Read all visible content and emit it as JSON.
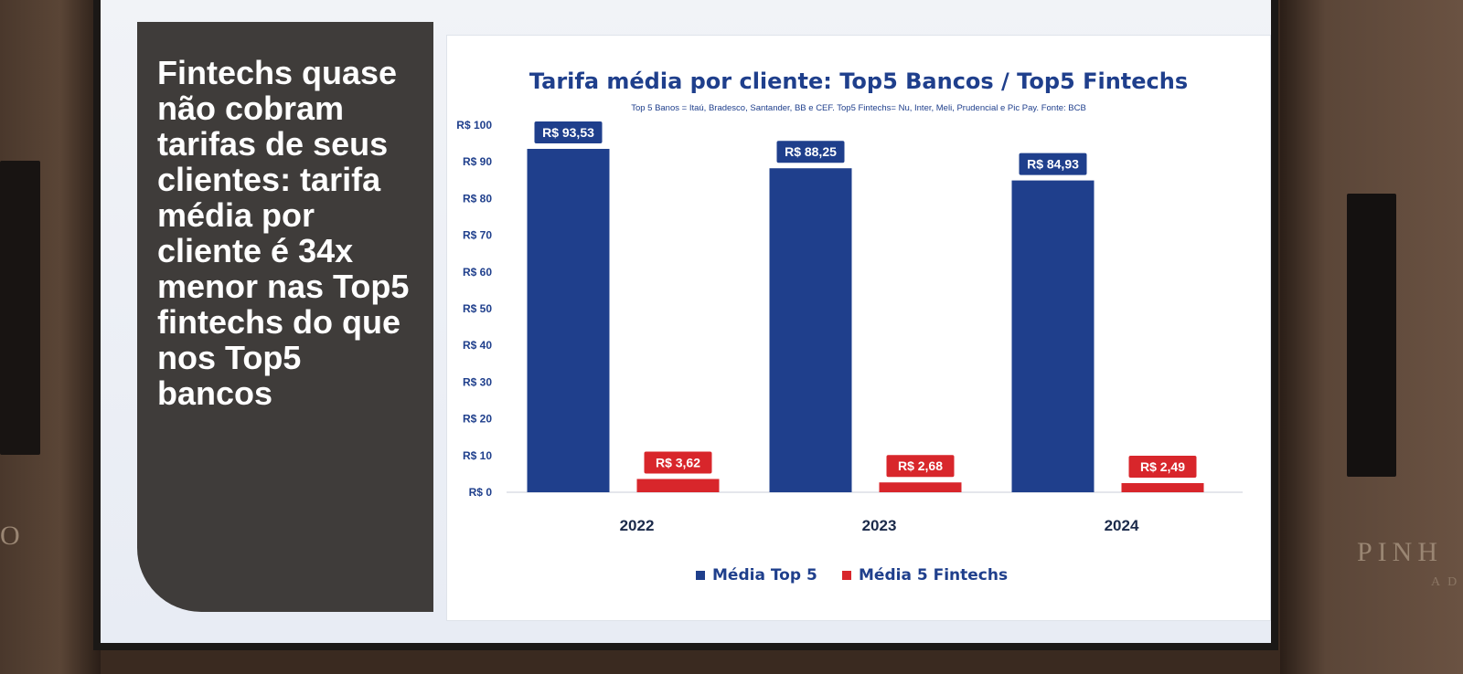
{
  "slide": {
    "headline": "Fintechs quase não cobram tarifas de seus clientes: tarifa média por cliente é 34x menor nas Top5 fintechs do que nos Top5 bancos"
  },
  "room": {
    "wall_text": "PINH",
    "wall_text_sub": "AD",
    "wall_text_left": "O"
  },
  "colors": {
    "navy": "#1f3f8c",
    "red": "#d8262b",
    "panel": "#3f3c3a"
  },
  "chart_data": {
    "type": "bar",
    "title": "Tarifa média por cliente: Top5 Bancos / Top5 Fintechs",
    "subtitle": "Top 5 Banos = Itaú, Bradesco, Santander, BB e CEF. Top5 Fintechs= Nu, Inter, Meli, Prudencial e Pic Pay. Fonte: BCB",
    "categories": [
      "2022",
      "2023",
      "2024"
    ],
    "series": [
      {
        "name": "Média Top 5",
        "values": [
          93.53,
          88.25,
          84.93
        ],
        "labels": [
          "R$ 93,53",
          "R$ 88,25",
          "R$ 84,93"
        ],
        "color": "#1f3f8c"
      },
      {
        "name": "Média 5 Fintechs",
        "values": [
          3.62,
          2.68,
          2.49
        ],
        "labels": [
          "R$ 3,62",
          "R$ 2,68",
          "R$ 2,49"
        ],
        "color": "#d8262b"
      }
    ],
    "ylim": [
      0,
      100
    ],
    "yticks": [
      0,
      10,
      20,
      30,
      40,
      50,
      60,
      70,
      80,
      90,
      100
    ],
    "ytick_labels": [
      "R$ 0",
      "R$ 10",
      "R$ 20",
      "R$ 30",
      "R$ 40",
      "R$ 50",
      "R$ 60",
      "R$ 70",
      "R$ 80",
      "R$ 90",
      "R$ 100"
    ],
    "grid": false,
    "legend": "bottom"
  }
}
